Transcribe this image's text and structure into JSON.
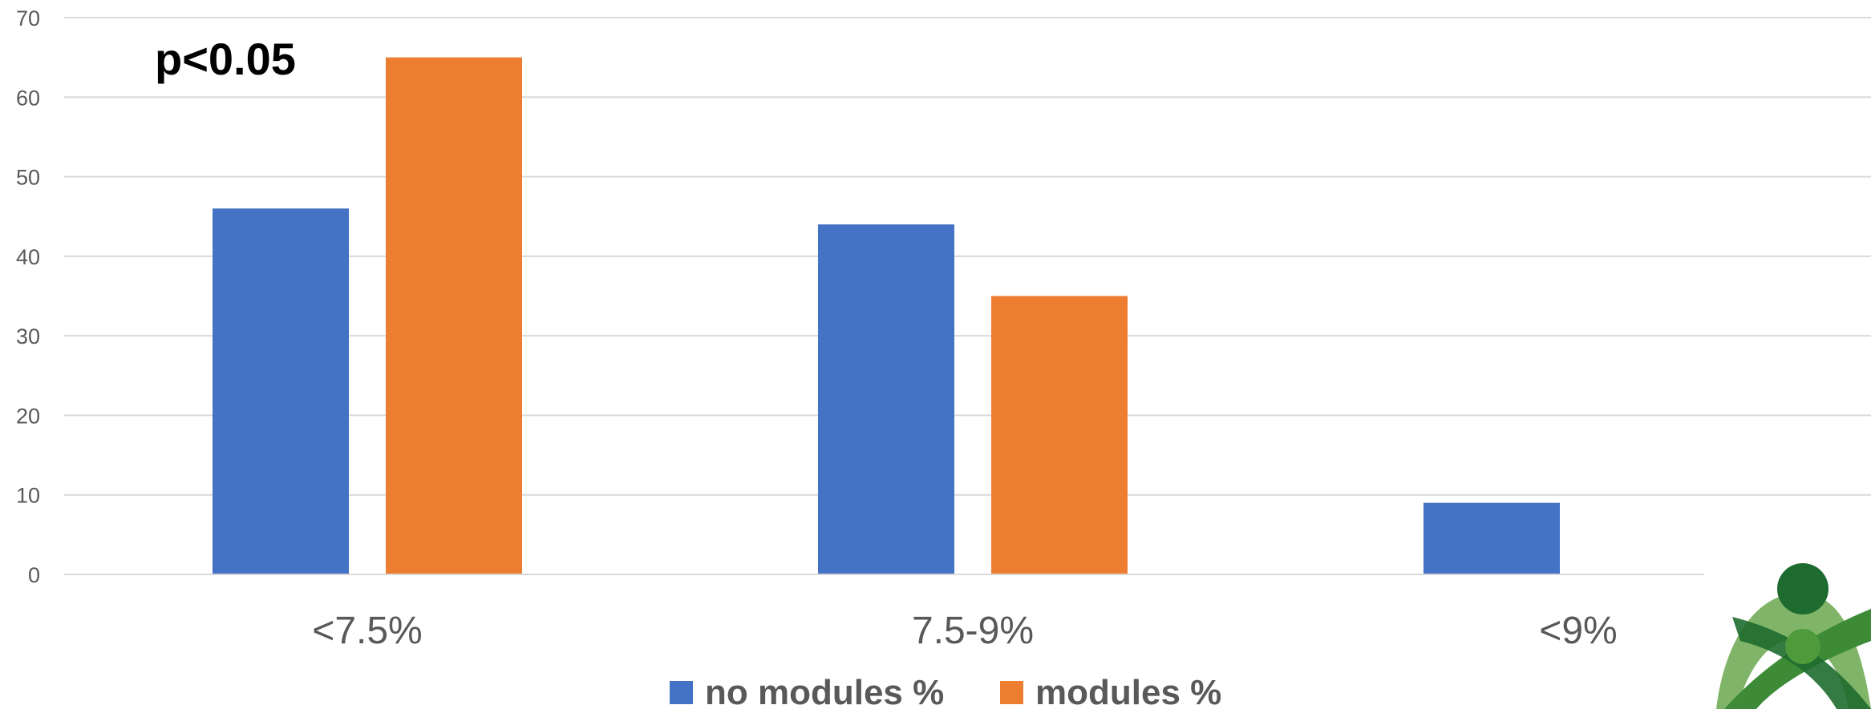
{
  "chart_data": {
    "type": "bar",
    "categories": [
      "<7.5%",
      "7.5-9%",
      "<9%"
    ],
    "series": [
      {
        "name": "no modules %",
        "values": [
          46,
          44,
          9
        ],
        "color": "#4472C4"
      },
      {
        "name": "modules %",
        "values": [
          65,
          35,
          0
        ],
        "color": "#ED7D31"
      }
    ],
    "yticks": [
      0,
      10,
      20,
      30,
      40,
      50,
      60,
      70
    ],
    "ylim": [
      0,
      70
    ],
    "grid": true,
    "legend": "bottom",
    "annotation": "p<0.05"
  }
}
